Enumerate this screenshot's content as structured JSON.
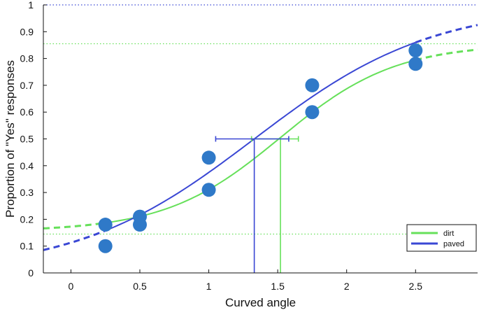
{
  "chart_data": {
    "type": "scatter",
    "title": "",
    "xlabel": "Curved angle",
    "ylabel": "Proportion of \"Yes\" responses",
    "xlim": [
      -0.2,
      2.95
    ],
    "ylim": [
      0,
      1
    ],
    "x_ticks": [
      "0",
      "0.5",
      "1",
      "1.5",
      "2",
      "2.5"
    ],
    "x_tick_values": [
      0,
      0.5,
      1,
      1.5,
      2,
      2.5
    ],
    "y_ticks": [
      "0",
      "0.1",
      "0.2",
      "0.3",
      "0.4",
      "0.5",
      "0.6",
      "0.7",
      "0.8",
      "0.9",
      "1"
    ],
    "y_tick_values": [
      0,
      0.1,
      0.2,
      0.3,
      0.4,
      0.5,
      0.6,
      0.7,
      0.8,
      0.9,
      1
    ],
    "grid": false,
    "legend_position": "bottom-right",
    "points": [
      {
        "x": 0.25,
        "y": 0.18
      },
      {
        "x": 0.25,
        "y": 0.1
      },
      {
        "x": 0.5,
        "y": 0.21
      },
      {
        "x": 0.5,
        "y": 0.18
      },
      {
        "x": 1.0,
        "y": 0.43
      },
      {
        "x": 1.0,
        "y": 0.31
      },
      {
        "x": 1.75,
        "y": 0.7
      },
      {
        "x": 1.75,
        "y": 0.6
      },
      {
        "x": 2.5,
        "y": 0.83
      },
      {
        "x": 2.5,
        "y": 0.78
      }
    ],
    "point_color": "#2f79c8",
    "series": [
      {
        "name": "dirt",
        "color": "#66e05a",
        "lower_asymptote": 0.155,
        "upper_asymptote": 0.855,
        "threshold_x": 1.52,
        "threshold_y": 0.5,
        "slope": 2.4,
        "fit_range": [
          0.25,
          2.5
        ],
        "threshold_ci": [
          1.31,
          1.65
        ]
      },
      {
        "name": "paved",
        "color": "#3a47d4",
        "lower_asymptote": 0.0,
        "upper_asymptote": 1.0,
        "threshold_x": 1.33,
        "threshold_y": 0.5,
        "slope": 1.55,
        "fit_range": [
          0.25,
          2.5
        ],
        "threshold_ci": [
          1.05,
          1.58
        ]
      }
    ],
    "reference_lines": [
      {
        "y": 1.0,
        "color": "#3a47d4",
        "style": "dotted"
      },
      {
        "y": 0.855,
        "color": "#66e05a",
        "style": "dotted"
      },
      {
        "y": 0.145,
        "color": "#66e05a",
        "style": "dotted"
      }
    ]
  }
}
